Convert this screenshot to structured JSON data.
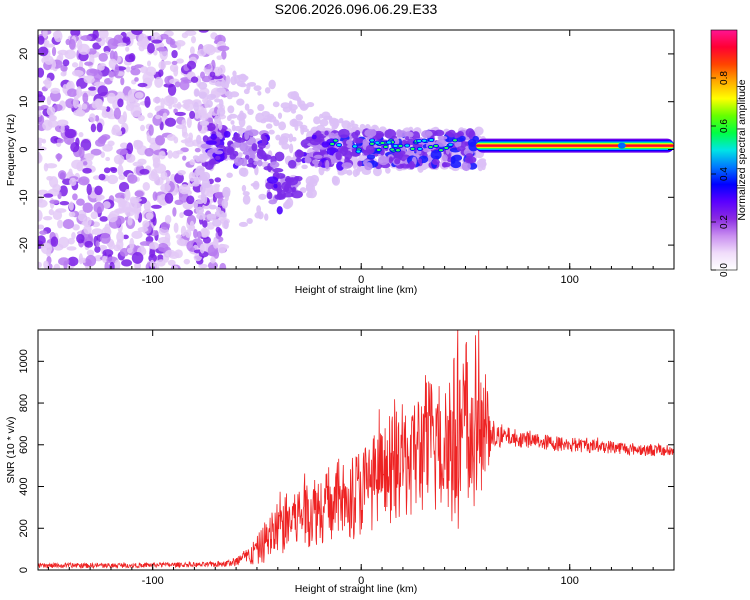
{
  "title": "S206.2026.096.06.29.E33",
  "colors": {
    "spectrogram_low": "#d8b8f4",
    "spectrogram_mid": "#6a00ee",
    "snr_line": "#ee2222",
    "colormap": [
      "#ffffff",
      "#f0dcfa",
      "#c98ef0",
      "#8a2be2",
      "#5a00ff",
      "#0000ff",
      "#0077ff",
      "#00e5e5",
      "#00ff44",
      "#66ff00",
      "#ffff00",
      "#ffaa00",
      "#ff4400",
      "#ff0033",
      "#ff1493"
    ]
  },
  "chart_data": [
    {
      "type": "heatmap",
      "title": "S206.2026.096.06.29.E33",
      "xlabel": "Height of straight line (km)",
      "ylabel": "Frequency (Hz)",
      "xlim": [
        -155,
        150
      ],
      "ylim": [
        -25,
        25
      ],
      "xticks": [
        -100,
        0,
        100
      ],
      "xtick_labels": [
        "-100",
        "0",
        "100"
      ],
      "yticks": [
        -20,
        -10,
        0,
        10,
        20
      ],
      "ytick_labels": [
        "-20",
        "-10",
        "0",
        "10",
        "20"
      ],
      "colorbar": {
        "label": "Normalized spectral amplitude",
        "range": [
          0,
          1
        ],
        "ticks": [
          0.0,
          0.2,
          0.4,
          0.6,
          0.8
        ],
        "tick_labels": [
          "0.0",
          "0.2",
          "0.4",
          "0.6",
          "0.8"
        ]
      },
      "features": {
        "noise_region_x": [
          -155,
          -75
        ],
        "scattered_band_x": [
          -75,
          55
        ],
        "steady_signal_x": [
          55,
          150
        ],
        "steady_signal_frequency_hz": 0.8,
        "steady_signal_amplitude": 0.95
      }
    },
    {
      "type": "line",
      "xlabel": "Height of straight line (km)",
      "ylabel": "SNR (10 * v/v)",
      "xlim": [
        -155,
        150
      ],
      "ylim": [
        0,
        1150
      ],
      "xticks": [
        -100,
        0,
        100
      ],
      "xtick_labels": [
        "-100",
        "0",
        "100"
      ],
      "yticks": [
        0,
        200,
        400,
        600,
        800,
        1000
      ],
      "ytick_labels": [
        "0",
        "200",
        "400",
        "600",
        "800",
        "1000"
      ],
      "series": [
        {
          "name": "SNR",
          "x": [
            -155,
            -120,
            -90,
            -75,
            -65,
            -60,
            -55,
            -50,
            -45,
            -40,
            -35,
            -30,
            -25,
            -20,
            -15,
            -10,
            -5,
            0,
            5,
            10,
            15,
            20,
            25,
            30,
            35,
            40,
            45,
            50,
            55,
            60,
            62,
            70,
            80,
            90,
            100,
            110,
            120,
            130,
            140,
            150
          ],
          "values": [
            20,
            22,
            25,
            25,
            30,
            40,
            60,
            90,
            150,
            200,
            230,
            260,
            280,
            300,
            320,
            340,
            350,
            380,
            420,
            450,
            480,
            520,
            550,
            580,
            600,
            620,
            620,
            630,
            640,
            650,
            630,
            640,
            625,
            610,
            600,
            595,
            590,
            580,
            575,
            570
          ],
          "spread": [
            12,
            12,
            12,
            12,
            15,
            25,
            45,
            70,
            110,
            140,
            150,
            160,
            170,
            180,
            190,
            200,
            210,
            220,
            230,
            240,
            260,
            280,
            300,
            330,
            360,
            400,
            430,
            430,
            380,
            300,
            60,
            45,
            40,
            38,
            36,
            34,
            32,
            30,
            30,
            30
          ]
        }
      ]
    }
  ]
}
